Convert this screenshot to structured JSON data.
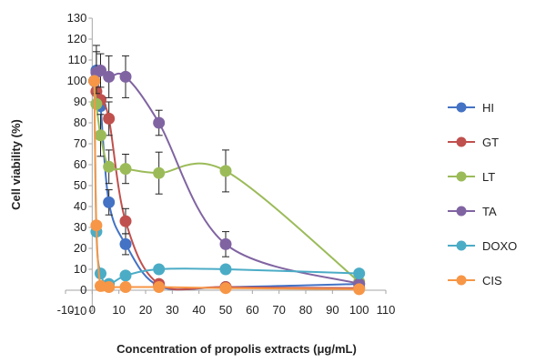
{
  "chart_data": {
    "type": "scatter",
    "title": "",
    "xlabel": "Concentration of propolis extracts (μg/mL)",
    "ylabel": "Cell viability (%)",
    "xlim": [
      -10,
      110
    ],
    "ylim": [
      -10,
      130
    ],
    "x_ticks": [
      "-10",
      "0",
      "10",
      "20",
      "30",
      "40",
      "50",
      "60",
      "70",
      "80",
      "90",
      "100",
      "110"
    ],
    "y_ticks": [
      "-10",
      "0",
      "10",
      "20",
      "30",
      "40",
      "50",
      "60",
      "70",
      "80",
      "90",
      "100",
      "110",
      "120",
      "130"
    ],
    "legend_position": "right",
    "grid": false,
    "smoothed_lines": true,
    "series": [
      {
        "name": "HI",
        "color": "#4472c4",
        "x": [
          0.78,
          1.56,
          3.125,
          6.25,
          12.5,
          25,
          50,
          100
        ],
        "y": [
          100,
          105,
          88,
          42,
          22,
          2,
          1.5,
          3
        ],
        "error": [
          0,
          12,
          0,
          6,
          5,
          0,
          0,
          0
        ]
      },
      {
        "name": "GT",
        "color": "#c0504d",
        "x": [
          0.78,
          1.56,
          3.125,
          6.25,
          12.5,
          25,
          50,
          100
        ],
        "y": [
          100,
          95,
          91,
          82,
          33,
          3,
          1.5,
          1
        ],
        "error": [
          0,
          0,
          0,
          8,
          6,
          0,
          0,
          0
        ]
      },
      {
        "name": "LT",
        "color": "#9bbb59",
        "x": [
          0.78,
          1.56,
          3.125,
          6.25,
          12.5,
          25,
          50,
          100
        ],
        "y": [
          100,
          89,
          74,
          59,
          58,
          56,
          57,
          4
        ],
        "error": [
          0,
          0,
          10,
          8,
          7,
          10,
          10,
          0
        ]
      },
      {
        "name": "TA",
        "color": "#8064a2",
        "x": [
          0.78,
          1.56,
          3.125,
          6.25,
          12.5,
          25,
          50,
          100
        ],
        "y": [
          100,
          104,
          105,
          102,
          102,
          80,
          22,
          3
        ],
        "error": [
          0,
          10,
          8,
          10,
          10,
          6,
          6,
          0
        ]
      },
      {
        "name": "DOXO",
        "color": "#4bacc6",
        "x": [
          0.78,
          1.56,
          3.125,
          6.25,
          12.5,
          25,
          50,
          100
        ],
        "y": [
          100,
          28,
          8,
          3,
          7,
          10,
          10,
          8
        ],
        "error": [
          0,
          0,
          0,
          0,
          0,
          0,
          0,
          0
        ]
      },
      {
        "name": "CIS",
        "color": "#f79646",
        "x": [
          0.78,
          1.56,
          3.125,
          6.25,
          12.5,
          25,
          50,
          100
        ],
        "y": [
          100,
          31,
          2,
          1.5,
          1.5,
          1.5,
          1,
          0.5
        ],
        "error": [
          0,
          0,
          0,
          0,
          0,
          0,
          0,
          0
        ]
      }
    ]
  }
}
